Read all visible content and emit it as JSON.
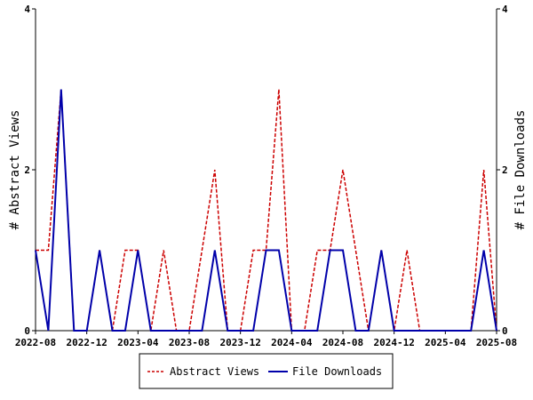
{
  "chart_data": {
    "type": "line",
    "x": [
      "2022-08",
      "2022-09",
      "2022-10",
      "2022-11",
      "2022-12",
      "2023-01",
      "2023-02",
      "2023-03",
      "2023-04",
      "2023-05",
      "2023-06",
      "2023-07",
      "2023-08",
      "2023-09",
      "2023-10",
      "2023-11",
      "2023-12",
      "2024-01",
      "2024-02",
      "2024-03",
      "2024-04",
      "2024-05",
      "2024-06",
      "2024-07",
      "2024-08",
      "2024-09",
      "2024-10",
      "2024-11",
      "2024-12",
      "2025-01",
      "2025-02",
      "2025-03",
      "2025-04",
      "2025-05",
      "2025-06",
      "2025-07",
      "2025-08"
    ],
    "x_ticks": [
      "2022-08",
      "2022-12",
      "2023-04",
      "2023-08",
      "2023-12",
      "2024-04",
      "2024-08",
      "2024-12",
      "2025-04",
      "2025-08"
    ],
    "series": [
      {
        "name": "Abstract Views",
        "axis": "left",
        "color": "#cc0000",
        "dash": "dashed",
        "values": [
          1,
          1,
          3,
          0,
          0,
          1,
          0,
          1,
          1,
          0,
          1,
          0,
          0,
          1,
          2,
          0,
          0,
          1,
          1,
          3,
          0,
          0,
          1,
          1,
          2,
          1,
          0,
          1,
          0,
          1,
          0,
          0,
          0,
          0,
          0,
          2,
          0
        ]
      },
      {
        "name": "File Downloads",
        "axis": "right",
        "color": "#0000aa",
        "dash": "solid",
        "values": [
          1,
          0,
          3,
          0,
          0,
          1,
          0,
          0,
          1,
          0,
          0,
          0,
          0,
          0,
          1,
          0,
          0,
          0,
          1,
          1,
          0,
          0,
          0,
          1,
          1,
          0,
          0,
          1,
          0,
          0,
          0,
          0,
          0,
          0,
          0,
          1,
          0
        ]
      }
    ],
    "ylabel": "# Abstract Views",
    "y2label": "# File Downloads",
    "ylim": [
      0,
      4
    ],
    "y2lim": [
      0,
      4
    ],
    "y_ticks": [
      "0",
      "2",
      "4"
    ],
    "y2_ticks": [
      "0",
      "2",
      "4"
    ],
    "grid": false,
    "legend": "bottom-center"
  }
}
